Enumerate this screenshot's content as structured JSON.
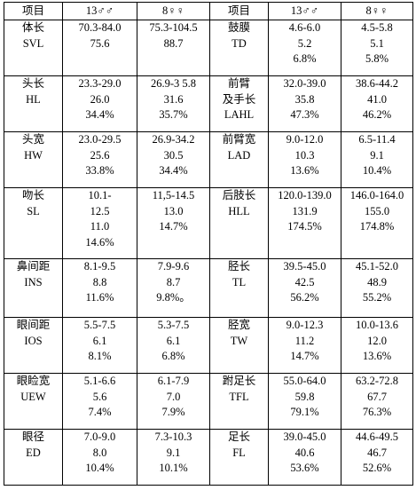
{
  "header": {
    "item_label": "项目",
    "male_label": "13♂♂",
    "female_label": "8♀♀"
  },
  "rows": [
    {
      "left": {
        "name": "体长",
        "abbr": "SVL",
        "male": [
          "70.3-84.0",
          "75.6"
        ],
        "female": [
          "75.3-104.5",
          "88.7"
        ]
      },
      "right": {
        "name": "鼓膜",
        "abbr": "TD",
        "male": [
          "4.6-6.0",
          "5.2",
          "6.8%"
        ],
        "female": [
          "4.5-5.8",
          "5.1",
          "5.8%"
        ]
      }
    },
    {
      "left": {
        "name": "头长",
        "abbr": "HL",
        "male": [
          "23.3-29.0",
          "26.0",
          "34.4%"
        ],
        "female": [
          "26.9-3 5.8",
          "31.6",
          "35.7%"
        ]
      },
      "right": {
        "name": "前臂",
        "name2": "及手长",
        "abbr": "LAHL",
        "male": [
          "32.0-39.0",
          "35.8",
          "47.3%"
        ],
        "female": [
          "38.6-44.2",
          "41.0",
          "46.2%"
        ]
      }
    },
    {
      "left": {
        "name": "头宽",
        "abbr": "HW",
        "male": [
          "23.0-29.5",
          "25.6",
          "33.8%"
        ],
        "female": [
          "26.9-34.2",
          "30.5",
          "34.4%"
        ]
      },
      "right": {
        "name": "前臂宽",
        "abbr": "LAD",
        "male": [
          "9.0-12.0",
          "10.3",
          "13.6%"
        ],
        "female": [
          "6.5-11.4",
          "9.1",
          "10.4%"
        ]
      }
    },
    {
      "left": {
        "name": "吻长",
        "abbr": "SL",
        "male": [
          "10.1-",
          "12.5",
          "11.0",
          "14.6%"
        ],
        "female": [
          "11,5-14.5",
          "13.0",
          "14.7%"
        ]
      },
      "right": {
        "name": "后肢长",
        "abbr": "HLL",
        "male": [
          "120.0-139.0",
          "131.9",
          "174.5%"
        ],
        "female": [
          "146.0-164.0",
          "155.0",
          "174.8%"
        ]
      }
    },
    {
      "left": {
        "name": "鼻间距",
        "abbr": "INS",
        "male": [
          "8.1-9.5",
          "8.8",
          "11.6%"
        ],
        "female": [
          "7.9-9.6",
          "8.7",
          "9.8%。"
        ]
      },
      "right": {
        "name": "胫长",
        "abbr": "TL",
        "male": [
          "39.5-45.0",
          "42.5",
          "56.2%"
        ],
        "female": [
          "45.1-52.0",
          "48.9",
          "55.2%"
        ]
      }
    },
    {
      "left": {
        "name": "眼间距",
        "abbr": "IOS",
        "male": [
          "5.5-7.5",
          "6.1",
          "8.1%"
        ],
        "female": [
          "5.3-7.5",
          "6.1",
          "6.8%"
        ]
      },
      "right": {
        "name": "胫宽",
        "abbr": "TW",
        "male": [
          "9.0-12.3",
          "11.2",
          "14.7%"
        ],
        "female": [
          "10.0-13.6",
          "12.0",
          "13.6%"
        ]
      }
    },
    {
      "left": {
        "name": "眼睑宽",
        "abbr": "UEW",
        "male": [
          "5.1-6.6",
          "5.6",
          "7.4%"
        ],
        "female": [
          "6.1-7.9",
          "7.0",
          "7.9%"
        ]
      },
      "right": {
        "name": "跗足长",
        "abbr": "TFL",
        "male": [
          "55.0-64.0",
          "59.8",
          "79.1%"
        ],
        "female": [
          "63.2-72.8",
          "67.7",
          "76.3%"
        ]
      }
    },
    {
      "left": {
        "name": "眼径",
        "abbr": "ED",
        "male": [
          "7.0-9.0",
          "8.0",
          "10.4%"
        ],
        "female": [
          "7.3-10.3",
          "9.1",
          "10.1%"
        ]
      },
      "right": {
        "name": "足长",
        "abbr": "FL",
        "male": [
          "39.0-45.0",
          "40.6",
          "53.6%"
        ],
        "female": [
          "44.6-49.5",
          "46.7",
          "52.6%"
        ]
      }
    }
  ]
}
